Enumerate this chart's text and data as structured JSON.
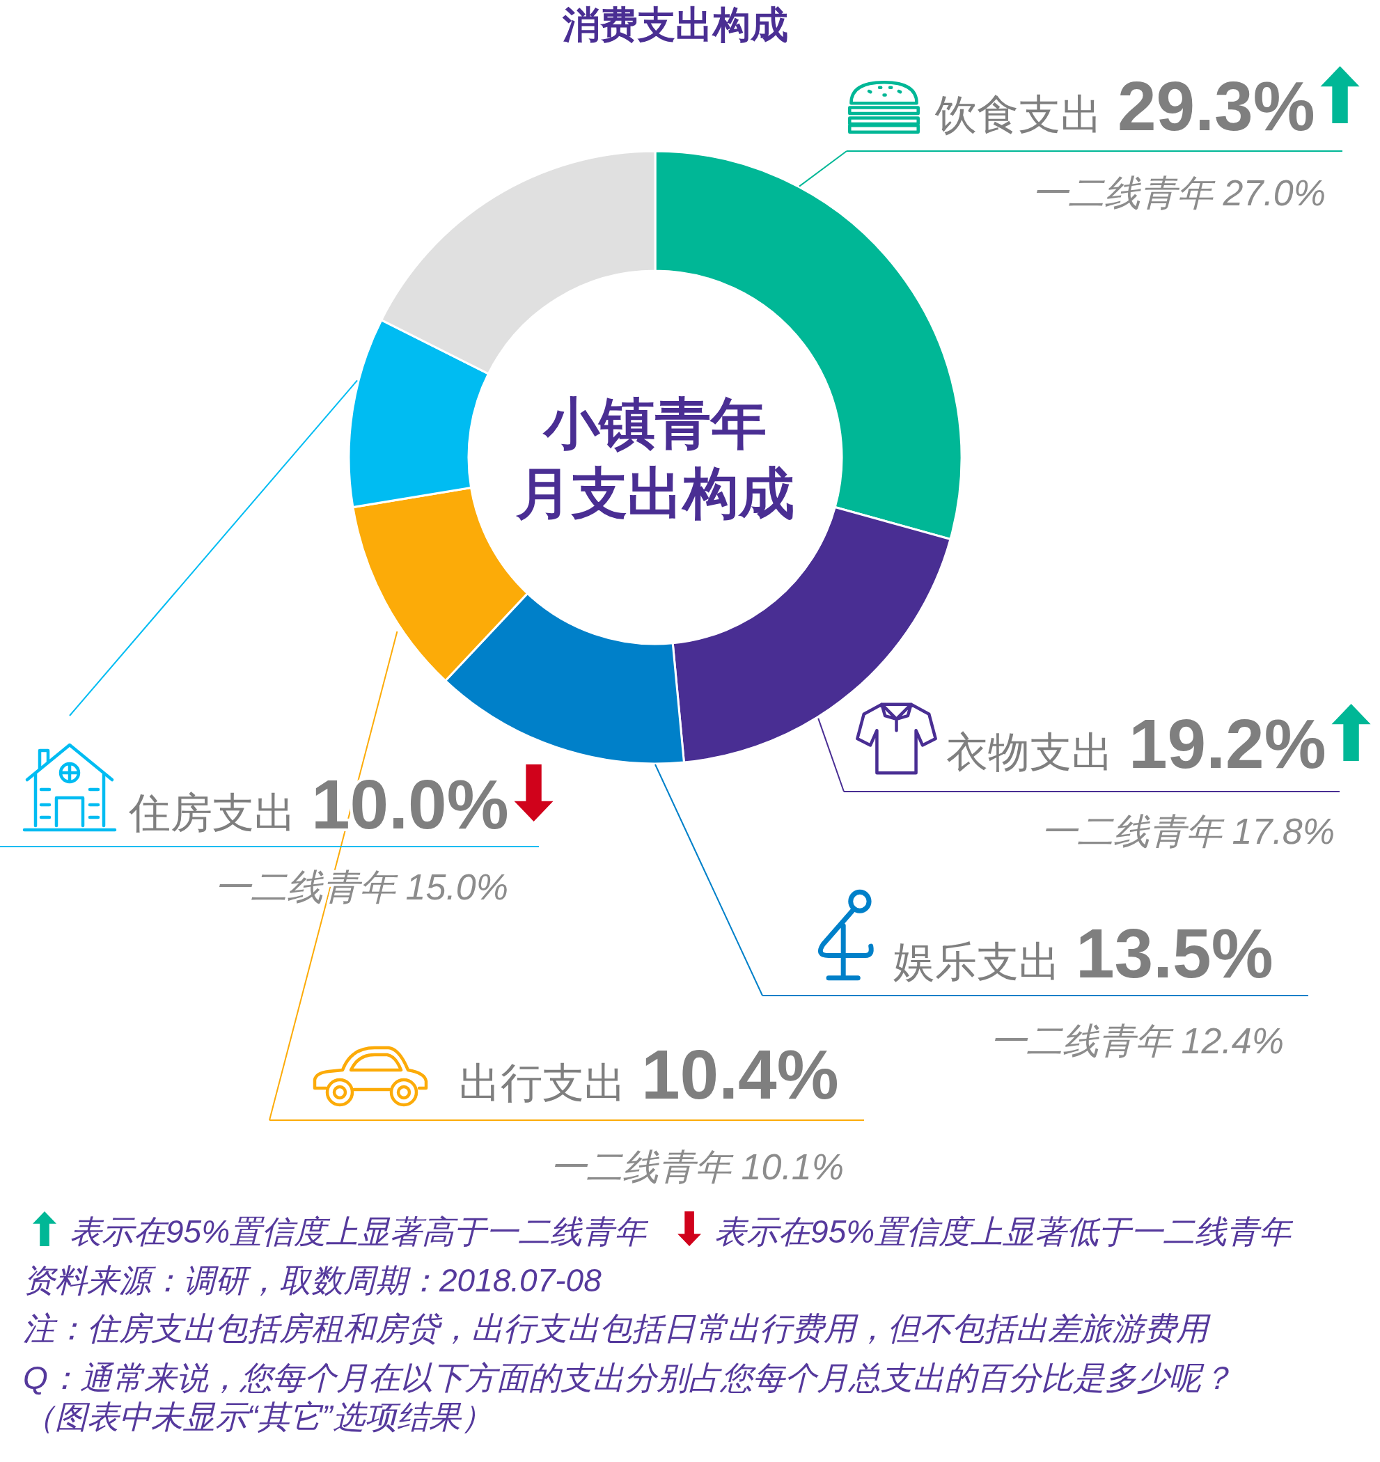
{
  "chart_data": {
    "type": "donut",
    "title": "消费支出构成",
    "subtitle": "小镇青年月支出构成",
    "legend": "bottom left",
    "categories": [
      "饮食支出",
      "衣物支出",
      "娱乐支出",
      "出行支出",
      "住房支出",
      null
    ],
    "values": [
      29.3,
      19.2,
      13.5,
      10.4,
      10.0,
      17.6
    ],
    "colors": [
      "#00b796",
      "#492e93",
      "#0080c9",
      "#fcab08",
      "#00bcf2",
      "#e0e0e0"
    ],
    "value_labels": [
      "29.3%",
      "19.2%",
      "13.5%",
      "10.4%",
      "10.0%",
      null
    ],
    "annotations": [
      {
        "text": "一二线青年 27.0%",
        "x": "饮食支出"
      },
      {
        "text": "一二线青年 17.8%",
        "x": "衣物支出"
      },
      {
        "text": "一二线青年 12.4%",
        "x": "娱乐支出"
      },
      {
        "text": "一二线青年 10.1%",
        "x": "出行支出"
      },
      {
        "text": "一二线青年 15.0%",
        "x": "住房支出"
      },
      "表示在95%置信度上显著高于一二线青年",
      "表示在95%置信度上显著低于一二线青年",
      "资料来源：调研，取数周期：2018.07-08",
      "注：住房支出包括房租和房贷，出行支出包括日常出行费用，但不包括出差旅游费用",
      "Q：通常来说，您每个月在以下方面的支出分别占您每个月总支出的百分比是多少呢？",
      "（图表中未显示“其它”选项结果）"
    ]
  }
}
